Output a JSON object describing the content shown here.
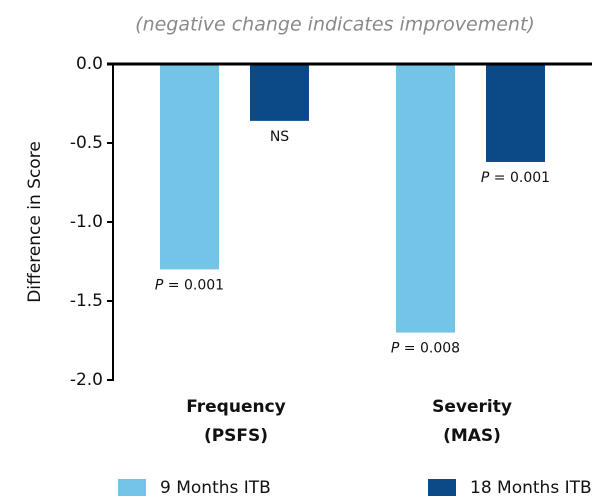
{
  "chart_data": {
    "type": "bar",
    "subtitle": "(negative change indicates improvement)",
    "y_label": "Difference in Score",
    "categories": [
      [
        "Frequency",
        "(PSFS)"
      ],
      [
        "Severity",
        "(MAS)"
      ]
    ],
    "series": [
      {
        "name": "9 Months ITB",
        "color": "#74c4e8",
        "values": [
          -1.3,
          -1.7
        ],
        "value_labels": [
          "P = 0.001",
          "P = 0.008"
        ]
      },
      {
        "name": "18 Months ITB",
        "color": "#0b4a86",
        "values": [
          -0.36,
          -0.62
        ],
        "value_labels": [
          "NS",
          "P = 0.001"
        ]
      }
    ],
    "ylim": [
      -2.0,
      0.0
    ],
    "yticks": [
      {
        "value": 0,
        "label": "0.0"
      },
      {
        "value": -0.5,
        "label": "-0.5"
      },
      {
        "value": -1.0,
        "label": "-1.0"
      },
      {
        "value": -1.5,
        "label": "-1.5"
      },
      {
        "value": -2.0,
        "label": "-2.0"
      }
    ],
    "grid": false
  }
}
